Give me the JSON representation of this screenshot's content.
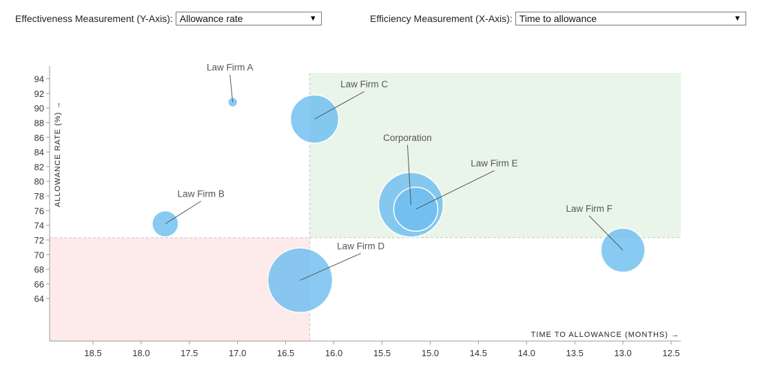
{
  "controls": {
    "y_axis": {
      "label": "Effectiveness Measurement (Y-Axis):",
      "selected": "Allowance rate",
      "arrow_icon": "caret-down-icon"
    },
    "x_axis": {
      "label": "Efficiency Measurement (X-Axis):",
      "selected": "Time to allowance",
      "arrow_icon": "caret-down-icon"
    }
  },
  "chart_data": {
    "type": "scatter",
    "variant": "bubble",
    "xlabel": "TIME TO ALLOWANCE (MONTHS) →",
    "ylabel": "ALLOWANCE RATE (%) →",
    "x_reversed": true,
    "xlim": [
      18.95,
      12.4
    ],
    "ylim": [
      58.2,
      94.8
    ],
    "x_ticks": [
      18.5,
      18.0,
      17.5,
      17.0,
      16.5,
      16.0,
      15.5,
      15.0,
      14.5,
      14.0,
      13.5,
      13.0,
      12.5
    ],
    "y_ticks": [
      64,
      66,
      68,
      70,
      72,
      74,
      76,
      78,
      80,
      82,
      84,
      86,
      88,
      90,
      92,
      94
    ],
    "reference_lines": {
      "x": 16.25,
      "y": 72.3
    },
    "quadrants": [
      {
        "name": "favorable",
        "color": "#eaf5ea"
      },
      {
        "name": "unfavorable",
        "color": "#fdeaea"
      }
    ],
    "bubble_color": "#6fbef0",
    "points": [
      {
        "name": "Law Firm A",
        "x": 17.05,
        "y": 90.8,
        "size": 7
      },
      {
        "name": "Law Firm B",
        "x": 17.75,
        "y": 74.2,
        "size": 19
      },
      {
        "name": "Law Firm C",
        "x": 16.2,
        "y": 88.5,
        "size": 35
      },
      {
        "name": "Law Firm D",
        "x": 16.35,
        "y": 66.5,
        "size": 47
      },
      {
        "name": "Corporation",
        "x": 15.2,
        "y": 76.8,
        "size": 47
      },
      {
        "name": "Law Firm E",
        "x": 15.15,
        "y": 76.2,
        "size": 32
      },
      {
        "name": "Law Firm F",
        "x": 13.0,
        "y": 70.6,
        "size": 32
      }
    ]
  }
}
